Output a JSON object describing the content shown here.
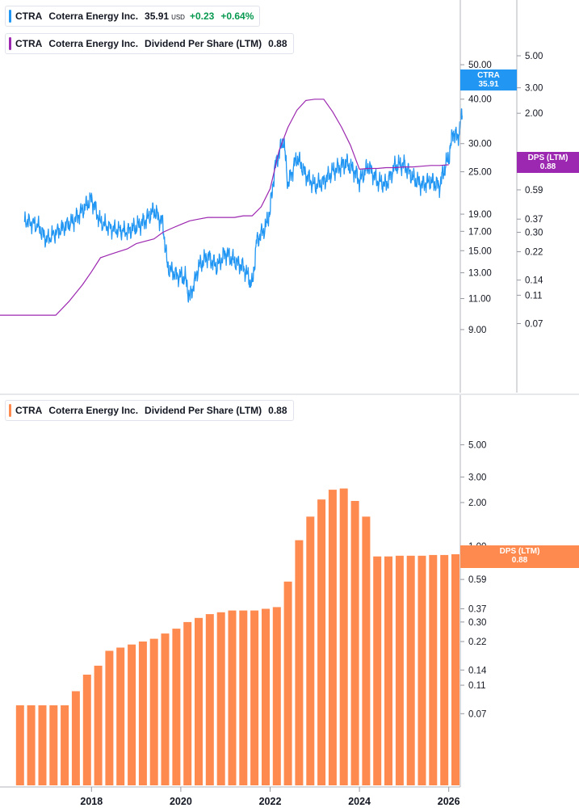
{
  "legend_price": {
    "ticker": "CTRA",
    "name": "Coterra Energy Inc.",
    "price": "35.91",
    "currency": "USD",
    "change": "+0.23",
    "change_pct": "+0.64%",
    "color": "#2196f3"
  },
  "legend_dps_top": {
    "ticker": "CTRA",
    "name": "Coterra Energy Inc.",
    "metric": "Dividend Per Share (LTM)",
    "value": "0.88",
    "color": "#9c27b0"
  },
  "legend_dps_bottom": {
    "ticker": "CTRA",
    "name": "Coterra Energy Inc.",
    "metric": "Dividend Per Share (LTM)",
    "value": "0.88",
    "color": "#ff8a50"
  },
  "tags": {
    "price": {
      "label": "CTRA",
      "value": "35.91",
      "color": "#2196f3"
    },
    "dps_top": {
      "label": "DPS (LTM)",
      "value": "0.88",
      "color": "#9c27b0"
    },
    "dps_bottom": {
      "label": "DPS (LTM)",
      "value": "0.88",
      "color": "#ff8a50"
    }
  },
  "chart_data": [
    {
      "type": "line",
      "panel": "top",
      "price_axis": {
        "scale": "log",
        "ticks": [
          "50.00",
          "45.00",
          "40.00",
          "30.00",
          "25.00",
          "19.00",
          "17.00",
          "15.00",
          "13.00",
          "11.00",
          "9.00"
        ]
      },
      "dps_axis": {
        "scale": "log",
        "ticks": [
          "5.00",
          "3.00",
          "2.00",
          "1.00",
          "0.59",
          "0.37",
          "0.30",
          "0.22",
          "0.14",
          "0.11",
          "0.07"
        ]
      },
      "series": [
        {
          "name": "CTRA",
          "axis": "price",
          "color": "#2196f3",
          "x": [
            2016.5,
            2016.8,
            2017.0,
            2017.3,
            2017.6,
            2017.8,
            2018.0,
            2018.2,
            2018.5,
            2018.8,
            2019.0,
            2019.2,
            2019.4,
            2019.6,
            2019.7,
            2019.9,
            2020.1,
            2020.2,
            2020.4,
            2020.6,
            2020.8,
            2021.0,
            2021.2,
            2021.4,
            2021.6,
            2021.7,
            2021.9,
            2022.0,
            2022.1,
            2022.3,
            2022.4,
            2022.6,
            2022.8,
            2023.0,
            2023.2,
            2023.4,
            2023.6,
            2023.7,
            2023.9,
            2024.0,
            2024.2,
            2024.4,
            2024.6,
            2024.8,
            2025.0,
            2025.2,
            2025.4,
            2025.6,
            2025.8,
            2025.9,
            2026.0,
            2026.1,
            2026.2,
            2026.3
          ],
          "y": [
            18.3,
            17.6,
            16.1,
            17.2,
            18.2,
            19.5,
            21.0,
            18.0,
            17.2,
            17.0,
            17.5,
            18.2,
            19.5,
            17.8,
            13.5,
            12.8,
            12.6,
            11.0,
            13.5,
            14.5,
            13.5,
            14.8,
            14.0,
            13.5,
            12.0,
            16.0,
            17.5,
            19.5,
            25.5,
            31.0,
            23.0,
            27.5,
            24.5,
            22.8,
            23.5,
            25.0,
            26.0,
            26.5,
            25.0,
            23.5,
            26.0,
            23.5,
            23.0,
            26.0,
            26.2,
            24.0,
            23.0,
            23.5,
            22.8,
            25.5,
            27.5,
            32.5,
            31.0,
            35.91
          ]
        },
        {
          "name": "DPS (LTM)",
          "axis": "dps",
          "color": "#9c27b0",
          "x": [
            2016.6,
            2017.0,
            2017.2,
            2017.5,
            2017.8,
            2018.0,
            2018.2,
            2018.4,
            2018.6,
            2018.8,
            2019.0,
            2019.2,
            2019.4,
            2019.6,
            2019.8,
            2020.0,
            2020.2,
            2020.4,
            2020.6,
            2020.8,
            2021.0,
            2021.2,
            2021.4,
            2021.6,
            2021.8,
            2022.0,
            2022.2,
            2022.4,
            2022.6,
            2022.8,
            2023.0,
            2023.2,
            2023.4,
            2023.6,
            2023.8,
            2024.0,
            2024.2,
            2024.4,
            2024.6,
            2024.8,
            2025.0,
            2025.2,
            2025.4,
            2025.6,
            2025.8,
            2026.0
          ],
          "y": [
            0.08,
            0.08,
            0.08,
            0.1,
            0.13,
            0.16,
            0.2,
            0.21,
            0.22,
            0.23,
            0.25,
            0.26,
            0.27,
            0.3,
            0.32,
            0.34,
            0.36,
            0.37,
            0.38,
            0.38,
            0.38,
            0.38,
            0.39,
            0.39,
            0.45,
            0.6,
            1.1,
            1.6,
            2.1,
            2.45,
            2.5,
            2.5,
            2.05,
            1.6,
            1.2,
            0.82,
            0.83,
            0.83,
            0.84,
            0.84,
            0.85,
            0.85,
            0.86,
            0.87,
            0.87,
            0.88
          ]
        }
      ]
    },
    {
      "type": "bar",
      "panel": "bottom",
      "y_axis": {
        "scale": "log",
        "ticks": [
          "5.00",
          "3.00",
          "2.00",
          "1.00",
          "0.81",
          "0.59",
          "0.37",
          "0.30",
          "0.22",
          "0.14",
          "0.11",
          "0.07"
        ]
      },
      "x_axis": {
        "ticks": [
          "2018",
          "2020",
          "2022",
          "2024",
          "2026"
        ]
      },
      "series": [
        {
          "name": "DPS (LTM)",
          "color": "#ff8a50",
          "x": [
            2016.4,
            2016.65,
            2016.9,
            2017.15,
            2017.4,
            2017.65,
            2017.9,
            2018.15,
            2018.4,
            2018.65,
            2018.9,
            2019.15,
            2019.4,
            2019.65,
            2019.9,
            2020.15,
            2020.4,
            2020.65,
            2020.9,
            2021.15,
            2021.4,
            2021.65,
            2021.9,
            2022.15,
            2022.4,
            2022.65,
            2022.9,
            2023.15,
            2023.4,
            2023.65,
            2023.9,
            2024.15,
            2024.4,
            2024.65,
            2024.9,
            2025.15,
            2025.4,
            2025.65,
            2025.9,
            2026.15
          ],
          "values": [
            0.08,
            0.08,
            0.08,
            0.08,
            0.08,
            0.1,
            0.13,
            0.15,
            0.19,
            0.2,
            0.21,
            0.22,
            0.23,
            0.25,
            0.27,
            0.3,
            0.32,
            0.34,
            0.35,
            0.36,
            0.36,
            0.36,
            0.37,
            0.38,
            0.57,
            1.1,
            1.6,
            2.1,
            2.45,
            2.5,
            2.05,
            1.6,
            0.85,
            0.85,
            0.86,
            0.86,
            0.86,
            0.87,
            0.87,
            0.88
          ]
        }
      ]
    }
  ]
}
